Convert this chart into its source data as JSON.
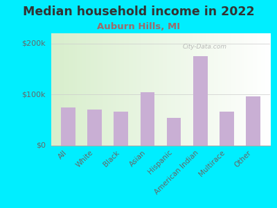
{
  "title": "Median household income in 2022",
  "subtitle": "Auburn Hills, MI",
  "categories": [
    "All",
    "White",
    "Black",
    "Asian",
    "Hispanic",
    "American Indian",
    "Multirace",
    "Other"
  ],
  "values": [
    75000,
    70000,
    67000,
    105000,
    55000,
    175000,
    67000,
    97000
  ],
  "bar_color": "#c9afd4",
  "background_outer": "#00eeff",
  "background_inner": "#e8f5e0",
  "title_color": "#333333",
  "subtitle_color": "#9b6b6b",
  "tick_color": "#666666",
  "ylim": [
    0,
    220000
  ],
  "yticks": [
    0,
    100000,
    200000
  ],
  "ytick_labels": [
    "$0",
    "$100k",
    "$200k"
  ],
  "watermark": "City-Data.com",
  "title_fontsize": 12.5,
  "subtitle_fontsize": 9.5,
  "tick_fontsize": 7.5,
  "ytick_fontsize": 8
}
